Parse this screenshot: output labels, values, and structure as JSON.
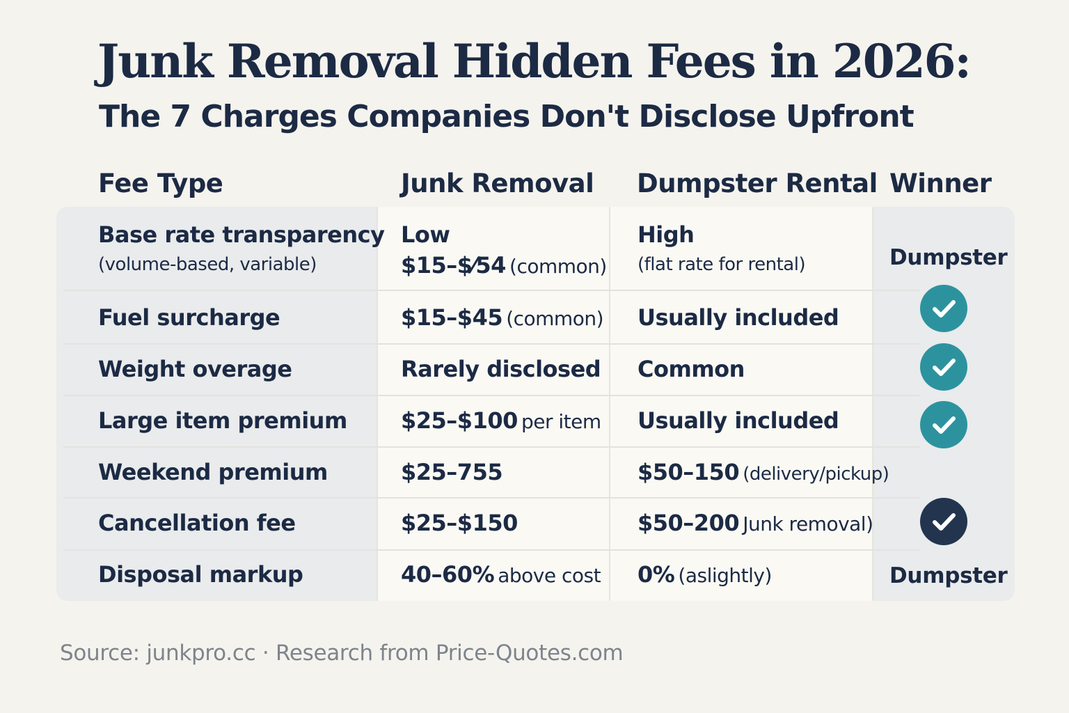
{
  "title": "Junk Removal Hidden Fees in 2026:",
  "subtitle": "The 7 Charges Companies Don't Disclose Upfront",
  "table": {
    "headers": {
      "fee_type": "Fee Type",
      "junk_removal": "Junk Removal",
      "dumpster_rental": "Dumpster Rental",
      "winner": "Winner"
    },
    "rows": [
      {
        "fee": "Base rate transparency",
        "fee_note": "(volume-based, variable)",
        "junk_main": "Low",
        "junk_value": "$15–$⁄54",
        "junk_note": "(common)",
        "dumpster_main": "High",
        "dumpster_note": "(flat rate for rental)",
        "winner_text": "Dumpster"
      },
      {
        "fee": "Fuel surcharge",
        "junk_value": "$15–$45",
        "junk_note": "(common)",
        "dumpster_main": "Usually included",
        "winner_icon": "check-icon-teal"
      },
      {
        "fee": "Weight overage",
        "junk_value": "Rarely disclosed",
        "dumpster_main": "Common",
        "winner_icon": "check-icon-teal"
      },
      {
        "fee": "Large item premium",
        "junk_value": "$25–$100",
        "junk_note": "per item",
        "dumpster_main": "Usually included",
        "winner_icon": "check-icon-teal"
      },
      {
        "fee": "Weekend premium",
        "junk_value": "$25–755",
        "dumpster_main": "$50–150",
        "dumpster_note": "(delivery/pickup)"
      },
      {
        "fee": "Cancellation fee",
        "junk_value": "$25–$150",
        "dumpster_main": "$50–200",
        "dumpster_note": "Junk removal)",
        "winner_icon": "check-icon-dark"
      },
      {
        "fee": "Disposal markup",
        "junk_value": "40–60%",
        "junk_note": "above cost",
        "dumpster_main": "0%",
        "dumpster_note": "(aslightly)",
        "winner_text": "Dumpster"
      }
    ]
  },
  "source": "Source: junkpro.cc · Research from Price-Quotes.com",
  "colors": {
    "background": "#f5f3ee",
    "text": "#1c2a44",
    "check_teal": "#2c939e",
    "check_dark": "#23354e",
    "source_text": "#7d848c"
  }
}
